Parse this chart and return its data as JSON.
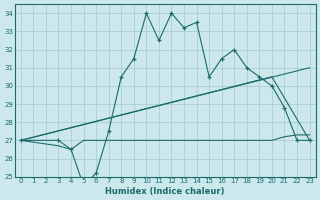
{
  "xlabel": "Humidex (Indice chaleur)",
  "bg_color": "#cce8ec",
  "grid_color": "#aacdd4",
  "line_color": "#1a6b6b",
  "xlim": [
    -0.5,
    23.5
  ],
  "ylim": [
    25,
    34.5
  ],
  "xticks": [
    0,
    1,
    2,
    3,
    4,
    5,
    6,
    7,
    8,
    9,
    10,
    11,
    12,
    13,
    14,
    15,
    16,
    17,
    18,
    19,
    20,
    21,
    22,
    23
  ],
  "yticks": [
    25,
    26,
    27,
    28,
    29,
    30,
    31,
    32,
    33,
    34
  ],
  "series_jagged": {
    "x": [
      0,
      3,
      4,
      5,
      6,
      7,
      8,
      9,
      10,
      11,
      12,
      13,
      14,
      15,
      16,
      17,
      18,
      19,
      20,
      21,
      22,
      23
    ],
    "y": [
      27,
      27,
      26.5,
      24.5,
      25.2,
      27.5,
      30.5,
      31.5,
      34,
      32.5,
      34,
      33.2,
      33.5,
      30.5,
      31.5,
      32,
      31,
      30.5,
      30,
      28.8,
      27,
      27
    ]
  },
  "series_ramp1": {
    "x": [
      0,
      23
    ],
    "y": [
      27,
      31
    ]
  },
  "series_ramp2": {
    "x": [
      0,
      20,
      23
    ],
    "y": [
      27,
      30.5,
      27
    ]
  },
  "series_flat": {
    "x": [
      0,
      3,
      4,
      5,
      6,
      7,
      10,
      20,
      21,
      22,
      23
    ],
    "y": [
      27,
      26.7,
      26.5,
      27,
      27,
      27,
      27,
      27,
      27.2,
      27.3,
      27.3
    ]
  }
}
